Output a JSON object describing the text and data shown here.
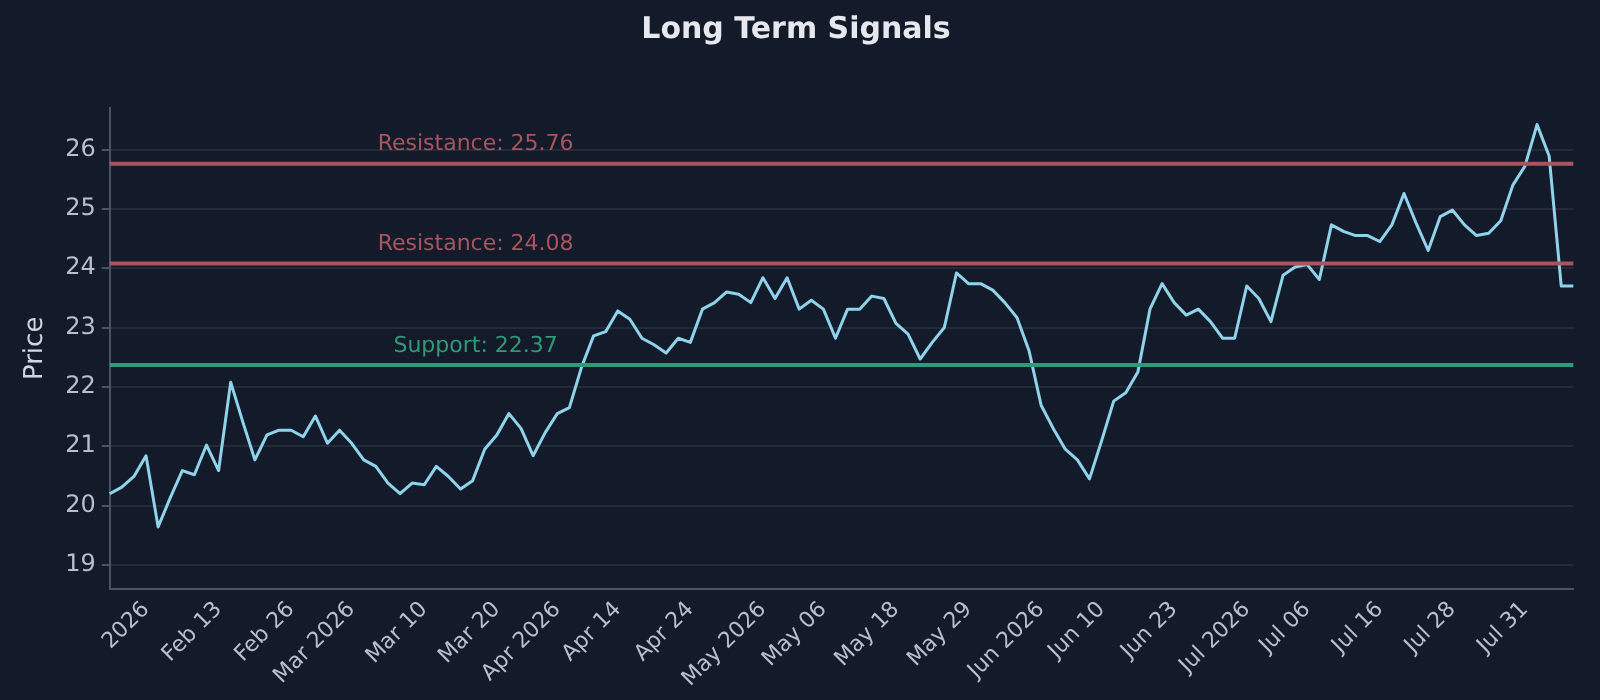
{
  "chart_data": {
    "type": "line",
    "title": "Long Term Signals",
    "ylabel": "Price",
    "categories": [
      null,
      null,
      null,
      "2026",
      null,
      null,
      null,
      null,
      null,
      "Feb 13",
      null,
      null,
      null,
      null,
      null,
      "Feb 26",
      null,
      null,
      null,
      null,
      "Mar 2026",
      null,
      null,
      null,
      null,
      null,
      "Mar 10",
      null,
      null,
      null,
      null,
      null,
      "Mar 20",
      null,
      null,
      null,
      null,
      "Apr 2026",
      null,
      null,
      null,
      null,
      "Apr 14",
      null,
      null,
      null,
      null,
      null,
      "Apr 24",
      null,
      null,
      null,
      null,
      null,
      "May 2026",
      null,
      null,
      null,
      null,
      "May 06",
      null,
      null,
      null,
      null,
      null,
      "May 18",
      null,
      null,
      null,
      null,
      null,
      "May 29",
      null,
      null,
      null,
      null,
      null,
      "Jun 2026",
      null,
      null,
      null,
      null,
      "Jun 10",
      null,
      null,
      null,
      null,
      null,
      "Jun 23",
      null,
      null,
      null,
      null,
      null,
      "Jul 2026",
      null,
      null,
      null,
      null,
      "Jul 06",
      null,
      null,
      null,
      null,
      null,
      "Jul 16",
      null,
      null,
      null,
      null,
      null,
      "Jul 28",
      null,
      null,
      null,
      null,
      null,
      "Jul 31",
      null,
      null,
      null,
      null
    ],
    "series": [
      {
        "color": "#8fd3ea",
        "values": [
          20.2,
          20.31,
          20.49,
          20.84,
          19.64,
          20.13,
          20.59,
          20.52,
          21.02,
          20.59,
          22.08,
          21.41,
          20.77,
          21.19,
          21.27,
          21.27,
          21.16,
          21.51,
          21.05,
          21.27,
          21.05,
          20.77,
          20.66,
          20.38,
          20.2,
          20.38,
          20.35,
          20.66,
          20.49,
          20.28,
          20.42,
          20.95,
          21.19,
          21.55,
          21.3,
          20.84,
          21.23,
          21.55,
          21.65,
          22.33,
          22.86,
          22.93,
          23.28,
          23.14,
          22.82,
          22.71,
          22.57,
          22.82,
          22.75,
          23.31,
          23.42,
          23.6,
          23.56,
          23.42,
          23.84,
          23.49,
          23.84,
          23.31,
          23.46,
          23.31,
          22.82,
          23.31,
          23.31,
          23.53,
          23.49,
          23.07,
          22.89,
          22.47,
          22.75,
          23.0,
          23.92,
          23.74,
          23.74,
          23.63,
          23.42,
          23.17,
          22.61,
          21.69,
          21.3,
          20.95,
          20.77,
          20.45,
          21.09,
          21.76,
          21.9,
          22.25,
          23.31,
          23.74,
          23.42,
          23.21,
          23.31,
          23.1,
          22.82,
          22.82,
          23.7,
          23.49,
          23.1,
          23.88,
          24.02,
          24.06,
          23.81,
          24.73,
          24.62,
          24.55,
          24.55,
          24.45,
          24.73,
          25.26,
          24.76,
          24.3,
          24.87,
          24.98,
          24.73,
          24.55,
          24.59,
          24.8,
          25.4,
          25.72,
          26.42,
          25.89,
          23.7,
          23.7
        ]
      }
    ],
    "ylim": [
      18.6,
      26.7
    ],
    "yticks": [
      19,
      20,
      21,
      22,
      23,
      24,
      25,
      26
    ],
    "grid": "y",
    "legend": false,
    "marker": "none",
    "line_style": "solid",
    "ref_lines": [
      {
        "axis": "y",
        "value": 25.76,
        "label": "Resistance: 25.76",
        "color": "#a9545e"
      },
      {
        "axis": "y",
        "value": 24.08,
        "label": "Resistance: 24.08",
        "color": "#a9545e"
      },
      {
        "axis": "y",
        "value": 22.37,
        "label": "Support: 22.37",
        "color": "#2f9a78"
      }
    ]
  }
}
